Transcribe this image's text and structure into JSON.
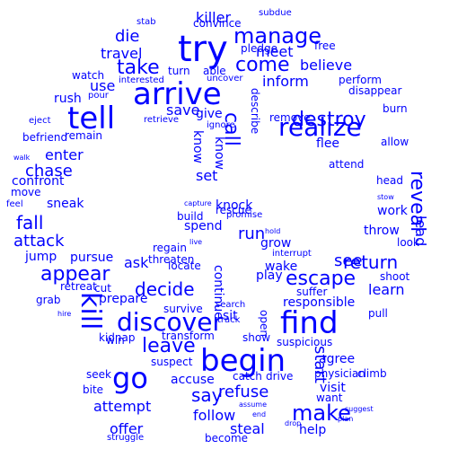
{
  "color": "#0000ff",
  "words": [
    "try",
    "arrive",
    "tell",
    "find",
    "begin",
    "go",
    "discover",
    "kill",
    "realize",
    "manage",
    "destroy",
    "take",
    "come",
    "leave",
    "decide",
    "escape",
    "return",
    "appear",
    "make",
    "say",
    "refuse",
    "reveal",
    "fall",
    "attack",
    "call",
    "die",
    "chase",
    "inform",
    "save",
    "use",
    "see",
    "follow",
    "attempt",
    "learn",
    "killer",
    "travel",
    "meet",
    "believe",
    "enter",
    "jump",
    "start",
    "wake",
    "knock",
    "run",
    "ask",
    "grow",
    "play",
    "responsible",
    "visit",
    "agree",
    "sit",
    "show",
    "set",
    "give",
    "flee",
    "attend",
    "shoot",
    "head",
    "work",
    "throw",
    "look",
    "lead",
    "help",
    "want",
    "confront",
    "move",
    "befriend",
    "remain",
    "sneak",
    "rescue",
    "prepare",
    "survive",
    "accuse",
    "pursue",
    "suspect",
    "drive",
    "steal",
    "offer",
    "free",
    "convince",
    "pledge",
    "subdue",
    "stab",
    "able",
    "turn",
    "uncover",
    "perform",
    "rush",
    "watch",
    "remove",
    "describe",
    "know",
    "know",
    "spend",
    "promise",
    "build",
    "regain",
    "threaten",
    "locate",
    "continue",
    "open",
    "climb",
    "physician",
    "kidnap",
    "transform",
    "win",
    "seek",
    "bite",
    "cut",
    "retreat",
    "grab",
    "interrupt",
    "search",
    "track",
    "catch",
    "allow",
    "burn",
    "disappear",
    "pour",
    "interested",
    "retrieve",
    "ignore",
    "feel",
    "eject",
    "walk",
    "become",
    "struggle",
    "end",
    "assume",
    "suggest",
    "stow",
    "pull",
    "suffer",
    "suspicious",
    "plan",
    "drop",
    "hire",
    "hold",
    "live",
    "capture"
  ]
}
